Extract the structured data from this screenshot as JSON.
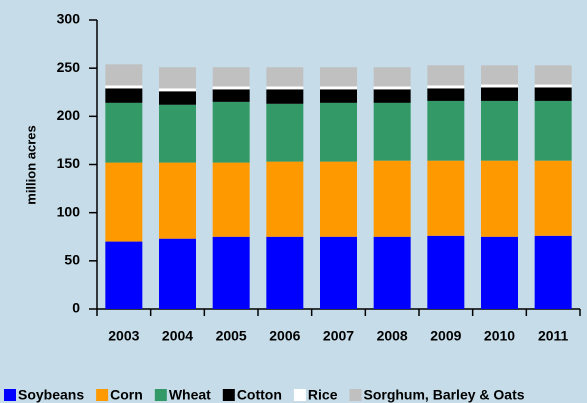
{
  "chart_data": {
    "type": "stacked_bar",
    "y_label": "million acres",
    "categories": [
      "2003",
      "2004",
      "2005",
      "2006",
      "2007",
      "2008",
      "2009",
      "2010",
      "2011"
    ],
    "series": [
      {
        "name": "Soybeans",
        "color": "#0000ff",
        "values": [
          70,
          73,
          75,
          75,
          75,
          75,
          76,
          75,
          76
        ]
      },
      {
        "name": "Corn",
        "color": "#ff9900",
        "values": [
          82,
          79,
          77,
          78,
          78,
          79,
          78,
          79,
          78
        ]
      },
      {
        "name": "Wheat",
        "color": "#339966",
        "values": [
          62,
          60,
          63,
          60,
          61,
          60,
          62,
          62,
          62
        ]
      },
      {
        "name": "Cotton",
        "color": "#000000",
        "values": [
          15,
          14,
          13,
          15,
          14,
          14,
          13,
          14,
          14
        ]
      },
      {
        "name": "Rice",
        "color": "#ffffff",
        "values": [
          3,
          3,
          3,
          3,
          3,
          3,
          3,
          3,
          3
        ]
      },
      {
        "name": "Sorghum, Barley & Oats",
        "color": "#c0c0c0",
        "values": [
          22,
          22,
          20,
          20,
          20,
          20,
          21,
          20,
          20
        ]
      }
    ],
    "ylim": [
      0,
      300
    ],
    "yticks": [
      0,
      50,
      100,
      150,
      200,
      250,
      300
    ],
    "grid": false
  }
}
